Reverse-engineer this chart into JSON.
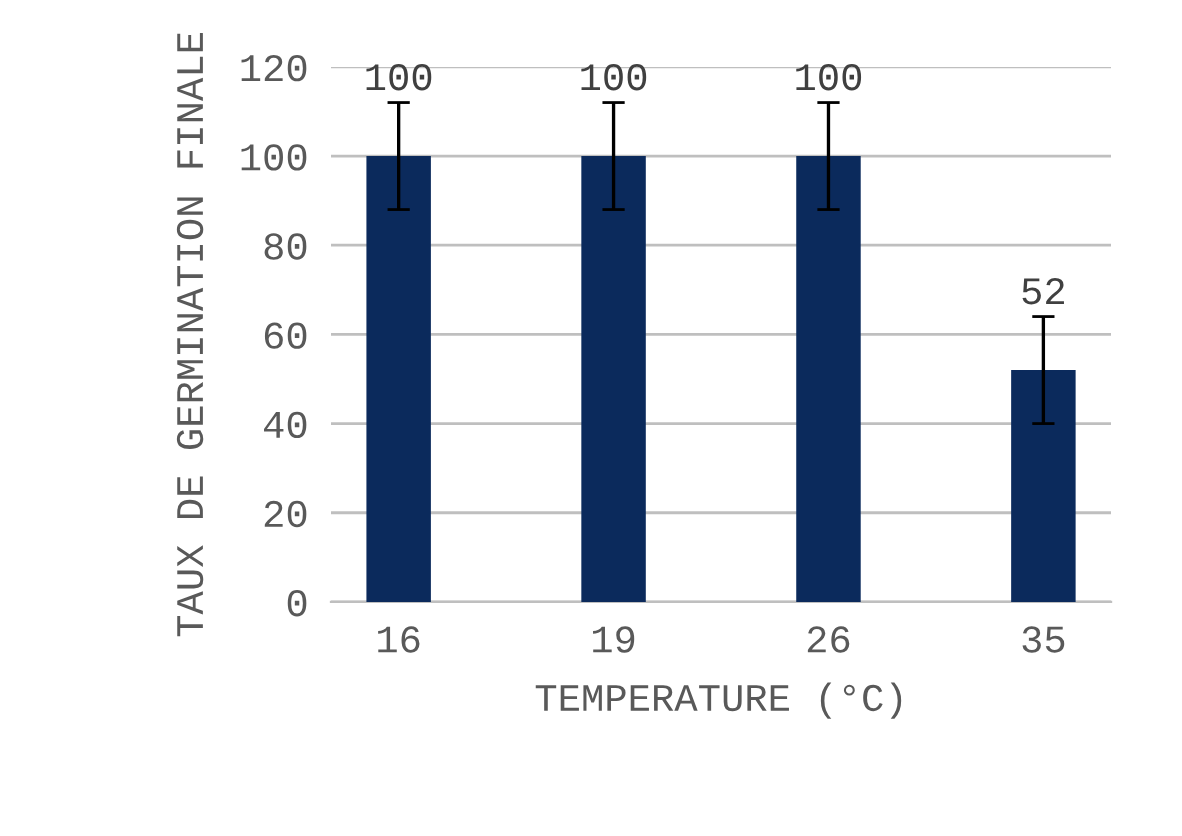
{
  "chart_data": {
    "type": "bar",
    "xlabel": "TEMPERATURE (°C)",
    "ylabel": "TAUX DE GERMINATION FINALE",
    "categories": [
      "16",
      "19",
      "26",
      "35"
    ],
    "values": [
      100,
      100,
      100,
      52
    ],
    "errors": [
      12,
      12,
      12,
      12
    ],
    "color": "#0b2a5c",
    "ylim": [
      0,
      120
    ],
    "yticks": [
      0,
      20,
      40,
      60,
      80,
      100,
      120
    ],
    "grid": "y",
    "data_labels": true
  }
}
